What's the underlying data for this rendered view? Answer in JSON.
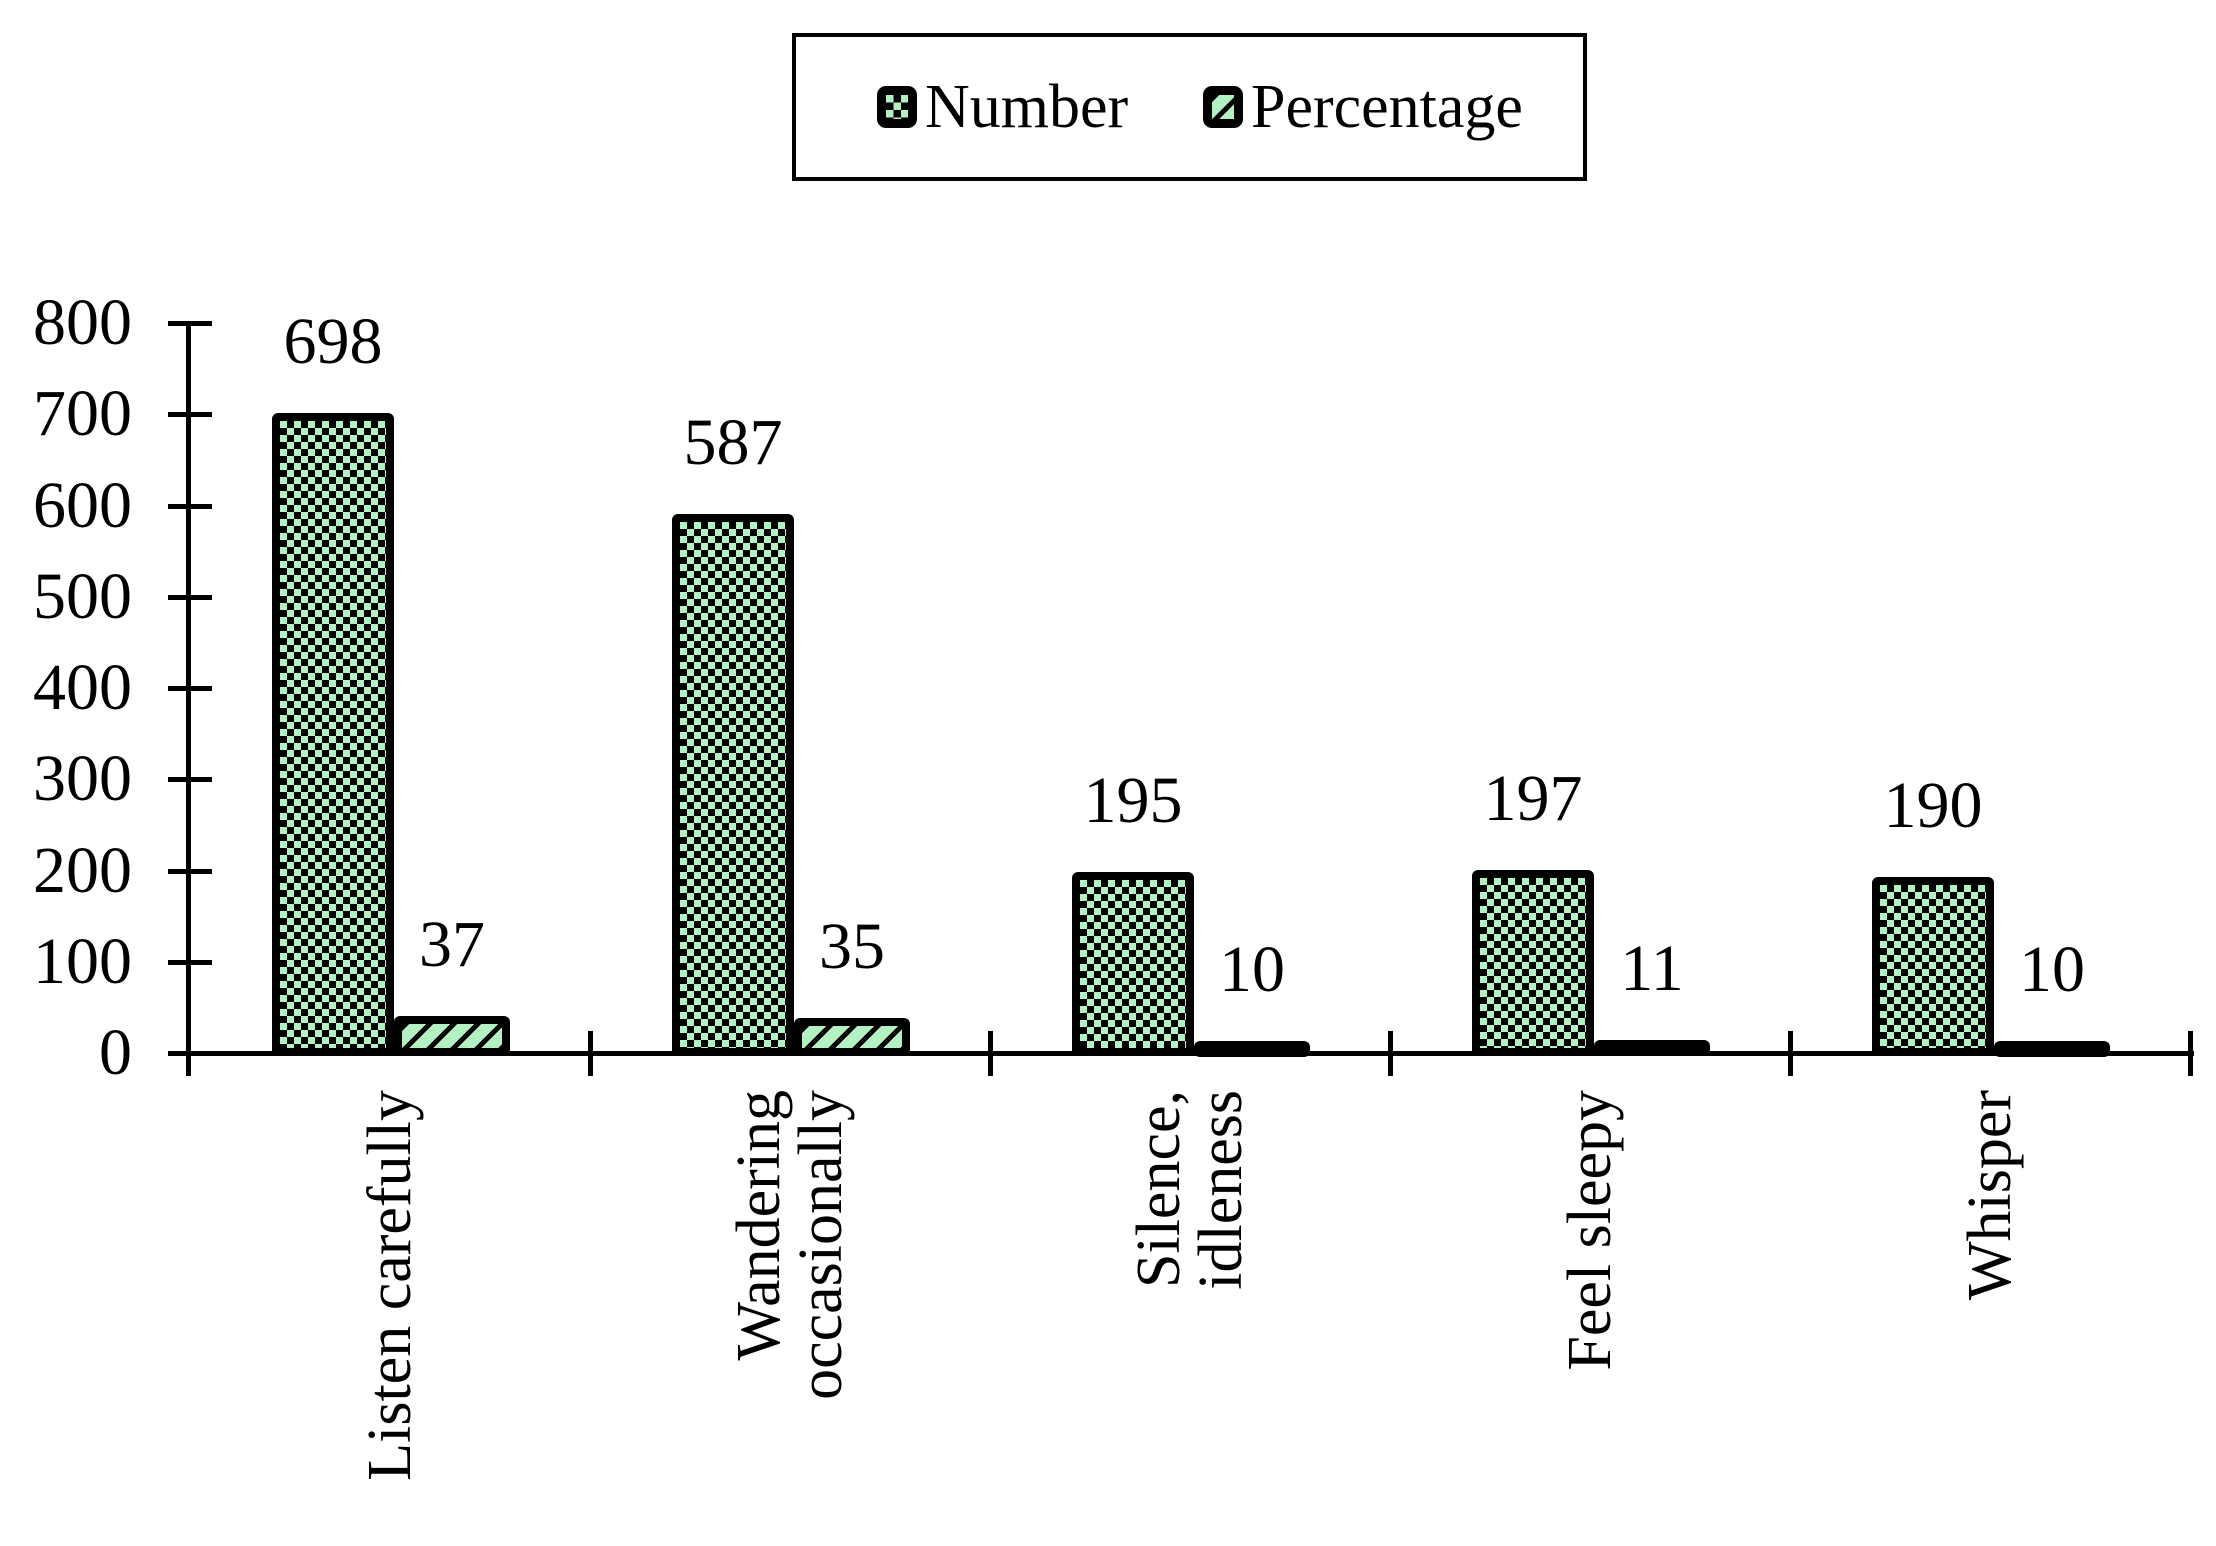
{
  "colors": {
    "bar_fill_green": "#b3f1c3",
    "bar_border": "#000000",
    "background": "#ffffff",
    "text": "#000000"
  },
  "legend": {
    "items": [
      {
        "label": "Number",
        "pattern": "checker"
      },
      {
        "label": "Percentage",
        "pattern": "diagonal"
      }
    ]
  },
  "chart_data": {
    "type": "bar",
    "title": "",
    "xlabel": "",
    "ylabel": "",
    "categories": [
      "Listen carefully",
      "Wandering occasionally",
      "Silence, idleness",
      "Feel sleepy",
      "Whisper"
    ],
    "category_label_lines": [
      [
        "Listen carefully"
      ],
      [
        "Wandering",
        "occasionally"
      ],
      [
        "Silence,",
        "idleness"
      ],
      [
        "Feel sleepy"
      ],
      [
        "Whisper"
      ]
    ],
    "series": [
      {
        "name": "Number",
        "pattern": "checker",
        "values": [
          698,
          587,
          195,
          197,
          190
        ]
      },
      {
        "name": "Percentage",
        "pattern": "diagonal",
        "values": [
          37,
          35,
          10,
          11,
          10
        ]
      }
    ],
    "data_labels": true,
    "ylim": [
      0,
      800
    ],
    "ytick_step": 100,
    "ytick_labels": [
      "0",
      "100",
      "200",
      "300",
      "400",
      "500",
      "600",
      "700",
      "800"
    ],
    "grid": false,
    "legend_position": "top"
  }
}
